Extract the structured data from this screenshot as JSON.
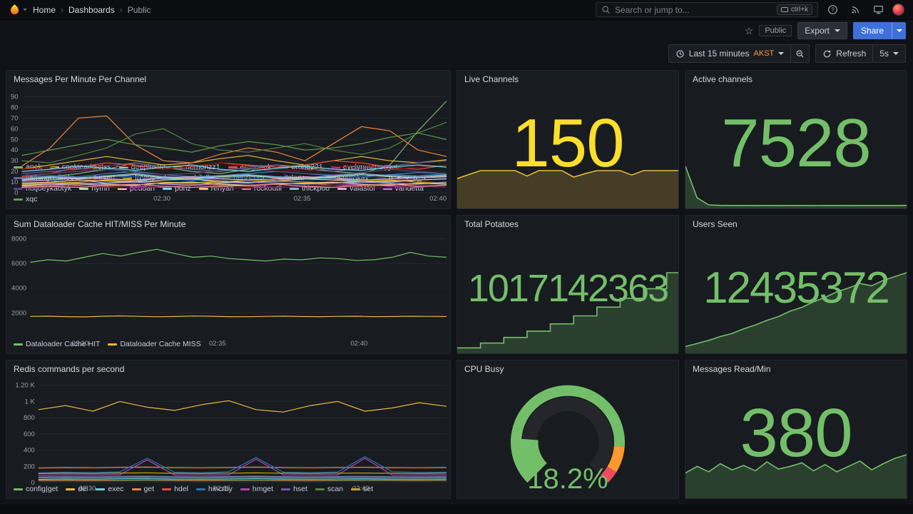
{
  "nav": {
    "breadcrumb": [
      "Home",
      "Dashboards",
      "Public"
    ],
    "separator": "›",
    "search_placeholder": "Search or jump to...",
    "search_shortcut": "ctrl+k"
  },
  "icons": {
    "help_glyph": "?",
    "star_glyph": "☆"
  },
  "toolbar": {
    "public_tag": "Public",
    "export_label": "Export",
    "share_label": "Share",
    "time_range": "Last 15 minutes",
    "timezone": "AKST",
    "refresh_label": "Refresh",
    "refresh_interval": "5s"
  },
  "panels": {
    "messages": {
      "title": "Messages Per Minute Per Channel"
    },
    "live_channels": {
      "title": "Live Channels",
      "value": "150",
      "color": "#FADE2A"
    },
    "active_channels": {
      "title": "Active channels",
      "value": "7528",
      "color": "#73BF69"
    },
    "dataloader": {
      "title": "Sum Dataloader Cache HIT/MISS Per Minute"
    },
    "total_potatoes": {
      "title": "Total Potatoes",
      "value": "1017142363",
      "color": "#73BF69"
    },
    "users_seen": {
      "title": "Users Seen",
      "value": "12435372",
      "color": "#73BF69"
    },
    "redis": {
      "title": "Redis commands per second"
    },
    "cpu_busy": {
      "title": "CPU Busy",
      "value": "18.2%",
      "color": "#73BF69"
    },
    "messages_read": {
      "title": "Messages Read/Min",
      "value": "380",
      "color": "#73BF69"
    }
  },
  "chart_data": [
    {
      "type": "line",
      "title": "Messages Per Minute Per Channel",
      "ylim": [
        0,
        95
      ],
      "ytick_values": [
        0,
        10,
        20,
        30,
        40,
        50,
        60,
        70,
        80,
        90
      ],
      "ytick_labels": [
        "0",
        "10",
        "20",
        "30",
        "40",
        "50",
        "60",
        "70",
        "80",
        "90"
      ],
      "xtick_pos": [
        0.33,
        0.66,
        0.98
      ],
      "xtick_labels": [
        "02:30",
        "02:35",
        "02:40"
      ],
      "series": [
        {
          "name": "anek",
          "color": "#7EB26D",
          "values": [
            12,
            15,
            18,
            22,
            28,
            24,
            20,
            18,
            22,
            26,
            24,
            20,
            18,
            26,
            58,
            86
          ]
        },
        {
          "name": "cookieaddictss",
          "color": "#EAB839",
          "values": [
            22,
            26,
            30,
            34,
            30,
            26,
            28,
            32,
            35,
            30,
            26,
            30,
            34,
            30,
            28,
            31
          ]
        },
        {
          "name": "deepins02",
          "color": "#6ED0E0",
          "values": [
            8,
            10,
            12,
            9,
            11,
            14,
            12,
            10,
            9,
            12,
            15,
            13,
            11,
            10,
            12,
            14
          ]
        },
        {
          "name": "demonzz1",
          "color": "#EF843C",
          "values": [
            25,
            42,
            70,
            72,
            45,
            30,
            28,
            36,
            42,
            38,
            30,
            46,
            62,
            58,
            40,
            34
          ]
        },
        {
          "name": "eragonuk",
          "color": "#E24D42",
          "values": [
            15,
            18,
            24,
            28,
            26,
            22,
            25,
            28,
            26,
            24,
            26,
            30,
            28,
            24,
            22,
            26
          ]
        },
        {
          "name": "erobb221",
          "color": "#1F78C1",
          "values": [
            10,
            12,
            14,
            16,
            15,
            13,
            12,
            14,
            16,
            15,
            14,
            13,
            15,
            17,
            16,
            18
          ]
        },
        {
          "name": "evelynmcnugget",
          "color": "#BA43A9",
          "values": [
            5,
            6,
            8,
            7,
            6,
            5,
            7,
            8,
            6,
            5,
            6,
            7,
            8,
            6,
            5,
            7
          ]
        },
        {
          "name": "flamingo_lindo",
          "color": "#705DA0",
          "values": [
            18,
            20,
            22,
            25,
            28,
            24,
            22,
            20,
            24,
            26,
            22,
            20,
            23,
            25,
            28,
            30
          ]
        },
        {
          "name": "forsen",
          "color": "#508642",
          "values": [
            30,
            28,
            35,
            42,
            55,
            60,
            46,
            40,
            38,
            42,
            46,
            40,
            36,
            42,
            56,
            66
          ]
        },
        {
          "name": "fregepaul",
          "color": "#CCA300",
          "values": [
            8,
            9,
            10,
            12,
            11,
            10,
            9,
            10,
            12,
            11,
            10,
            9,
            11,
            12,
            10,
            9
          ]
        },
        {
          "name": "gabilella",
          "color": "#447EBC",
          "values": [
            14,
            16,
            15,
            18,
            20,
            17,
            15,
            16,
            18,
            20,
            18,
            16,
            15,
            17,
            19,
            18
          ]
        },
        {
          "name": "henricom",
          "color": "#C15C17",
          "values": [
            6,
            7,
            8,
            6,
            7,
            9,
            8,
            7,
            6,
            8,
            9,
            7,
            6,
            7,
            8,
            9
          ]
        },
        {
          "name": "itsloru",
          "color": "#890F02",
          "values": [
            22,
            24,
            20,
            26,
            24,
            22,
            25,
            28,
            24,
            22,
            20,
            24,
            26,
            22,
            24,
            26
          ]
        },
        {
          "name": "marisnotokay",
          "color": "#0A437C",
          "values": [
            10,
            12,
            11,
            13,
            15,
            12,
            11,
            13,
            14,
            12,
            11,
            13,
            15,
            13,
            12,
            14
          ]
        },
        {
          "name": "n_e_v_o_s",
          "color": "#6D1F62",
          "values": [
            4,
            5,
            6,
            5,
            4,
            6,
            7,
            5,
            4,
            5,
            6,
            7,
            5,
            4,
            6,
            5
          ]
        },
        {
          "name": "notjoeykaotyk",
          "color": "#584477",
          "values": [
            16,
            18,
            20,
            22,
            19,
            17,
            18,
            21,
            23,
            20,
            18,
            17,
            19,
            22,
            20,
            18
          ]
        },
        {
          "name": "nymn",
          "color": "#B7DBAB",
          "values": [
            12,
            14,
            13,
            15,
            17,
            14,
            13,
            15,
            16,
            14,
            13,
            15,
            17,
            15,
            14,
            16
          ]
        },
        {
          "name": "peudan",
          "color": "#F4D598",
          "values": [
            7,
            8,
            9,
            8,
            7,
            9,
            10,
            8,
            7,
            8,
            9,
            10,
            8,
            7,
            9,
            8
          ]
        },
        {
          "name": "punz",
          "color": "#70DBED",
          "values": [
            20,
            22,
            25,
            23,
            21,
            24,
            26,
            22,
            20,
            23,
            25,
            22,
            21,
            24,
            26,
            24
          ]
        },
        {
          "name": "renyan",
          "color": "#F9BA8F",
          "values": [
            9,
            10,
            12,
            11,
            10,
            12,
            13,
            11,
            10,
            11,
            13,
            12,
            10,
            11,
            12,
            13
          ]
        },
        {
          "name": "rockoutll",
          "color": "#F29191",
          "values": [
            5,
            6,
            5,
            7,
            8,
            6,
            5,
            6,
            7,
            8,
            6,
            5,
            7,
            8,
            6,
            7
          ]
        },
        {
          "name": "thickpoo",
          "color": "#82B5D8",
          "values": [
            13,
            15,
            14,
            16,
            18,
            15,
            14,
            16,
            17,
            15,
            14,
            16,
            18,
            16,
            15,
            17
          ]
        },
        {
          "name": "vaiastol",
          "color": "#E5A8E2",
          "values": [
            11,
            12,
            14,
            13,
            12,
            14,
            15,
            13,
            12,
            13,
            15,
            14,
            12,
            13,
            14,
            15
          ]
        },
        {
          "name": "varidetta",
          "color": "#AEA2E0",
          "values": [
            6,
            8,
            7,
            9,
            10,
            8,
            7,
            9,
            10,
            9,
            8,
            9,
            10,
            9,
            8,
            10
          ]
        },
        {
          "name": "xqc",
          "color": "#629E51",
          "values": [
            35,
            40,
            45,
            50,
            45,
            42,
            38,
            44,
            48,
            45,
            40,
            42,
            46,
            52,
            56,
            50
          ]
        }
      ]
    },
    {
      "type": "line",
      "title": "Sum Dataloader Cache HIT/MISS Per Minute",
      "ylim": [
        0,
        8200
      ],
      "ytick_values": [
        2000,
        4000,
        6000,
        8000
      ],
      "ytick_labels": [
        "2000",
        "4000",
        "6000",
        "8000"
      ],
      "xtick_pos": [
        0.12,
        0.45,
        0.79
      ],
      "xtick_labels": [
        "02:30",
        "02:35",
        "02:40"
      ],
      "series": [
        {
          "name": "Dataloader Cache HIT",
          "color": "#73BF69",
          "values": [
            6100,
            6300,
            6200,
            6500,
            6800,
            6600,
            6900,
            7150,
            6800,
            6500,
            6600,
            6400,
            6300,
            6200,
            6350,
            6300,
            6450,
            6400,
            6250,
            6300,
            6500,
            6900,
            6600,
            6500
          ]
        },
        {
          "name": "Dataloader Cache MISS",
          "color": "#EAB839",
          "values": [
            1720,
            1740,
            1700,
            1680,
            1730,
            1760,
            1720,
            1690,
            1710,
            1750,
            1730,
            1700,
            1690,
            1720,
            1740,
            1710,
            1700,
            1720,
            1730,
            1700,
            1710,
            1730,
            1720,
            1710
          ]
        }
      ]
    },
    {
      "type": "line",
      "title": "Redis commands per second",
      "ylim": [
        0,
        1250
      ],
      "ytick_values": [
        0,
        200,
        400,
        600,
        800,
        1000,
        1200
      ],
      "ytick_labels": [
        "0",
        "200",
        "400",
        "600",
        "800",
        "1 K",
        "1.20 K"
      ],
      "xtick_pos": [
        0.12,
        0.45,
        0.79
      ],
      "xtick_labels": [
        "02:30",
        "02:35",
        "02:40"
      ],
      "series": [
        {
          "name": "config|get",
          "color": "#7EB26D",
          "values": [
            60,
            65,
            62,
            68,
            70,
            64,
            62,
            66,
            70,
            65,
            62,
            66,
            68,
            64,
            62,
            66
          ]
        },
        {
          "name": "del",
          "color": "#EAB839",
          "values": [
            900,
            950,
            880,
            1000,
            930,
            890,
            960,
            1010,
            900,
            870,
            950,
            1000,
            880,
            920,
            985,
            940
          ]
        },
        {
          "name": "exec",
          "color": "#6ED0E0",
          "values": [
            40,
            45,
            42,
            48,
            50,
            44,
            42,
            46,
            50,
            45,
            42,
            46,
            48,
            44,
            42,
            46
          ]
        },
        {
          "name": "get",
          "color": "#EF843C",
          "values": [
            180,
            185,
            182,
            188,
            190,
            184,
            182,
            186,
            190,
            185,
            182,
            186,
            188,
            184,
            182,
            186
          ]
        },
        {
          "name": "hdel",
          "color": "#E24D42",
          "values": [
            30,
            32,
            31,
            33,
            35,
            32,
            31,
            33,
            34,
            32,
            31,
            33,
            35,
            33,
            32,
            34
          ]
        },
        {
          "name": "hincrby",
          "color": "#1F78C1",
          "values": [
            120,
            128,
            122,
            132,
            300,
            128,
            120,
            134,
            310,
            128,
            122,
            130,
            320,
            134,
            124,
            128
          ]
        },
        {
          "name": "hmget",
          "color": "#BA43A9",
          "values": [
            90,
            95,
            92,
            98,
            280,
            94,
            92,
            96,
            290,
            95,
            92,
            96,
            300,
            94,
            92,
            96
          ]
        },
        {
          "name": "hset",
          "color": "#705DA0",
          "values": [
            70,
            75,
            72,
            78,
            80,
            74,
            72,
            76,
            80,
            75,
            72,
            76,
            78,
            74,
            72,
            76
          ]
        },
        {
          "name": "scan",
          "color": "#508642",
          "values": [
            20,
            22,
            21,
            23,
            25,
            22,
            21,
            23,
            24,
            22,
            21,
            23,
            25,
            23,
            22,
            24
          ]
        },
        {
          "name": "set",
          "color": "#CCA300",
          "values": [
            110,
            115,
            112,
            118,
            120,
            114,
            112,
            116,
            120,
            115,
            112,
            116,
            118,
            114,
            112,
            116
          ]
        }
      ]
    },
    {
      "type": "area",
      "name": "live-channels-sparkline",
      "color": "#EAB839",
      "values": [
        118,
        134,
        150,
        150,
        150,
        150,
        128,
        150,
        150,
        150,
        124,
        138,
        150,
        150,
        150,
        132,
        150,
        150,
        150,
        150
      ]
    },
    {
      "type": "area",
      "name": "active-channels-sparkline",
      "color": "#73BF69",
      "values": [
        7528,
        1800,
        520,
        430,
        410,
        420,
        400,
        415,
        405,
        420,
        410,
        400,
        415,
        420,
        405,
        415,
        410,
        420,
        415,
        425
      ]
    },
    {
      "type": "area",
      "name": "total-potatoes-sparkline",
      "color": "#73BF69",
      "step": true,
      "values": [
        6,
        6,
        12,
        12,
        19,
        19,
        27,
        27,
        36,
        36,
        46,
        46,
        57,
        57,
        68,
        68,
        80,
        80,
        100,
        100
      ]
    },
    {
      "type": "area",
      "name": "users-seen-sparkline",
      "color": "#73BF69",
      "values": [
        8,
        12,
        16,
        21,
        25,
        31,
        36,
        42,
        47,
        54,
        59,
        66,
        72,
        79,
        84,
        90,
        87,
        94,
        99,
        104
      ]
    },
    {
      "type": "area",
      "name": "messages-read-sparkline",
      "color": "#73BF69",
      "values": [
        55,
        70,
        58,
        76,
        62,
        72,
        60,
        80,
        64,
        70,
        78,
        60,
        74,
        58,
        70,
        82,
        62,
        76,
        88,
        96
      ]
    },
    {
      "type": "gauge",
      "title": "CPU Busy",
      "min": 0,
      "max": 100,
      "value": 18.2,
      "display": "18.2%",
      "color": "#73BF69",
      "thresholds": [
        {
          "to": 85,
          "color": "#73BF69"
        },
        {
          "to": 95,
          "color": "#FF9830"
        },
        {
          "to": 100,
          "color": "#F2495C"
        }
      ]
    }
  ]
}
